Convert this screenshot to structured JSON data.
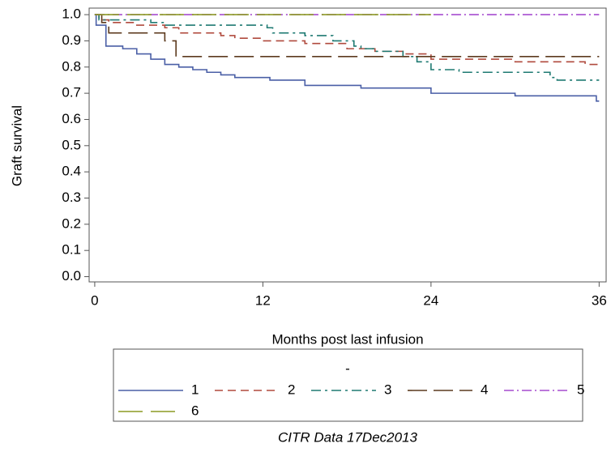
{
  "chart_data": {
    "type": "line",
    "step": true,
    "y_label": "Graft survival",
    "x_label": "Months post last infusion",
    "legend_title": "-",
    "footnote": "CITR  Data 17Dec2013",
    "xlim": [
      -0.4,
      36.5
    ],
    "ylim": [
      -0.02,
      1.025
    ],
    "xticks": [
      0,
      12,
      24,
      36
    ],
    "yticks": [
      {
        "value": 0,
        "label": "0.0"
      },
      0.1,
      0.2,
      0.3,
      0.4,
      0.5,
      0.6,
      0.7,
      0.8,
      0.9,
      {
        "value": 1,
        "label": "1.0"
      }
    ],
    "series": [
      {
        "name": "1",
        "color": "#4a5fa6",
        "dash": "none",
        "x": [
          0,
          0.1,
          0.5,
          0.8,
          2,
          3,
          4,
          5,
          6,
          7,
          8,
          9,
          10,
          12,
          12.5,
          14.5,
          15,
          18,
          19,
          23,
          24,
          29,
          30,
          35.5,
          35.8,
          36
        ],
        "values": [
          1,
          0.96,
          0.96,
          0.88,
          0.87,
          0.85,
          0.83,
          0.81,
          0.8,
          0.79,
          0.78,
          0.77,
          0.76,
          0.76,
          0.75,
          0.75,
          0.73,
          0.73,
          0.72,
          0.72,
          0.7,
          0.7,
          0.69,
          0.69,
          0.67,
          0.67
        ]
      },
      {
        "name": "2",
        "color": "#b04a3d",
        "dash": "10,6",
        "x": [
          0,
          0.3,
          1,
          3,
          5,
          6,
          9,
          10,
          12,
          15,
          18,
          20,
          22,
          24,
          30,
          35,
          36
        ],
        "values": [
          1,
          0.98,
          0.97,
          0.96,
          0.95,
          0.93,
          0.92,
          0.91,
          0.9,
          0.89,
          0.87,
          0.86,
          0.85,
          0.83,
          0.82,
          0.81,
          0.81
        ]
      },
      {
        "name": "3",
        "color": "#1e7a72",
        "dash": "12,5,3,5",
        "x": [
          0,
          0.3,
          4,
          5,
          12,
          12.3,
          12.7,
          14,
          15,
          16,
          17,
          18,
          18.5,
          19,
          20,
          22,
          23,
          24,
          25.5,
          26,
          32,
          32.5,
          33,
          36
        ],
        "values": [
          1,
          0.98,
          0.97,
          0.96,
          0.96,
          0.95,
          0.93,
          0.93,
          0.92,
          0.92,
          0.9,
          0.9,
          0.88,
          0.87,
          0.86,
          0.84,
          0.82,
          0.79,
          0.79,
          0.78,
          0.78,
          0.76,
          0.75,
          0.75
        ]
      },
      {
        "name": "4",
        "color": "#5c3a1e",
        "dash": "24,8",
        "x": [
          0,
          0.5,
          1,
          4,
          5,
          5.8,
          36
        ],
        "values": [
          1,
          0.97,
          0.93,
          0.93,
          0.9,
          0.84,
          0.84
        ]
      },
      {
        "name": "5",
        "color": "#a64ccf",
        "dash": "12,4,2,4",
        "x": [
          0,
          36
        ],
        "values": [
          1,
          1
        ]
      },
      {
        "name": "6",
        "color": "#8c9a23",
        "dash": "30,10",
        "x": [
          0,
          24
        ],
        "values": [
          1,
          1
        ]
      }
    ]
  }
}
